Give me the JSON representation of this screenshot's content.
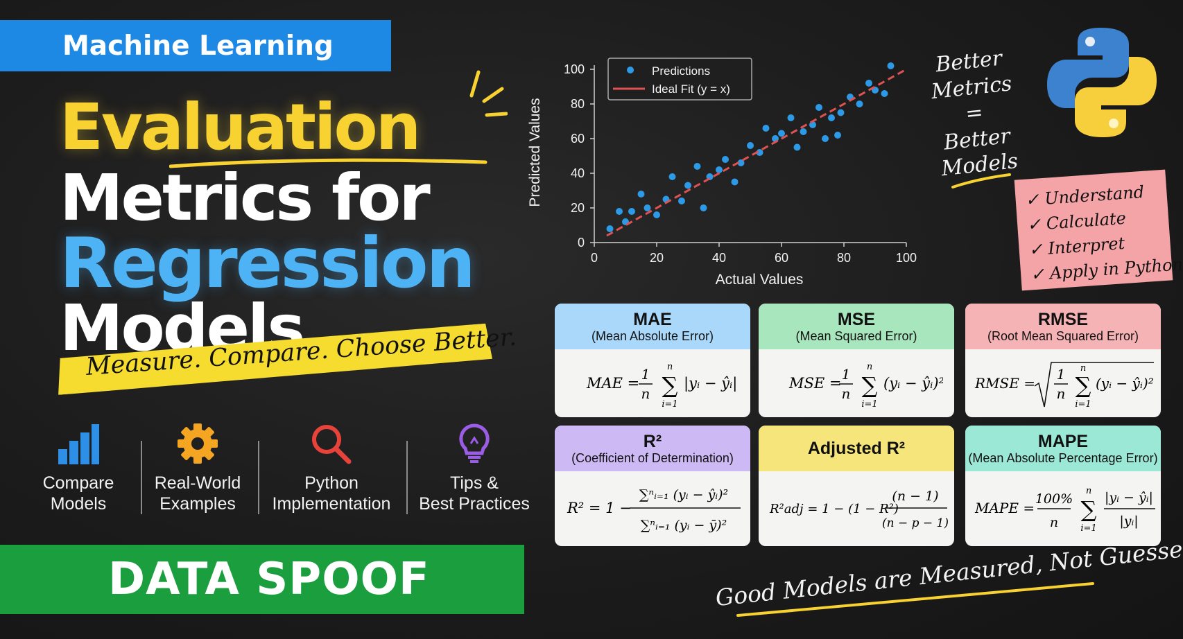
{
  "badge": "Machine Learning",
  "title": {
    "line1": "Evaluation",
    "line2": "Metrics for",
    "line3": "Regression",
    "line4": "Models"
  },
  "tagline": "Measure. Compare. Choose Better.",
  "features": [
    {
      "line1": "Compare",
      "line2": "Models",
      "icon": "bar-chart-icon",
      "color": "#2d8fe6"
    },
    {
      "line1": "Real-World",
      "line2": "Examples",
      "icon": "gear-icon",
      "color": "#f4a521"
    },
    {
      "line1": "Python",
      "line2": "Implementation",
      "icon": "magnifier-icon",
      "color": "#e8433b"
    },
    {
      "line1": "Tips &",
      "line2": "Best Practices",
      "icon": "lightbulb-icon",
      "color": "#9b5de5"
    }
  ],
  "brand": "DATA SPOOF",
  "chart_data": {
    "type": "scatter",
    "xlabel": "Actual Values",
    "ylabel": "Predicted Values",
    "xlim": [
      0,
      100
    ],
    "ylim": [
      0,
      100
    ],
    "xticks": [
      "0",
      "20",
      "40",
      "60",
      "80",
      "100"
    ],
    "yticks": [
      "0",
      "20",
      "40",
      "60",
      "80",
      "100"
    ],
    "legend": {
      "placement": "top-left",
      "entries": [
        "Predictions",
        "Ideal Fit (y = x)"
      ]
    },
    "series": [
      {
        "name": "Predictions",
        "points": [
          [
            5,
            8
          ],
          [
            8,
            18
          ],
          [
            10,
            12
          ],
          [
            12,
            18
          ],
          [
            15,
            28
          ],
          [
            17,
            20
          ],
          [
            20,
            16
          ],
          [
            23,
            25
          ],
          [
            25,
            38
          ],
          [
            28,
            24
          ],
          [
            30,
            33
          ],
          [
            33,
            44
          ],
          [
            35,
            20
          ],
          [
            37,
            38
          ],
          [
            40,
            42
          ],
          [
            42,
            48
          ],
          [
            45,
            35
          ],
          [
            47,
            46
          ],
          [
            50,
            56
          ],
          [
            53,
            52
          ],
          [
            55,
            66
          ],
          [
            58,
            60
          ],
          [
            60,
            63
          ],
          [
            63,
            72
          ],
          [
            65,
            55
          ],
          [
            67,
            64
          ],
          [
            70,
            68
          ],
          [
            72,
            78
          ],
          [
            74,
            60
          ],
          [
            76,
            72
          ],
          [
            79,
            75
          ],
          [
            82,
            84
          ],
          [
            85,
            80
          ],
          [
            88,
            92
          ],
          [
            90,
            88
          ],
          [
            93,
            86
          ],
          [
            95,
            102
          ],
          [
            78,
            62
          ]
        ]
      },
      {
        "name": "Ideal Fit (y = x)",
        "line": [
          [
            4,
            4
          ],
          [
            100,
            100
          ]
        ]
      }
    ]
  },
  "side_note": {
    "l1": "Better",
    "l2": "Metrics",
    "l3": "=",
    "l4": "Better",
    "l5": "Models"
  },
  "checklist": [
    "✓ Understand",
    "✓ Calculate",
    "✓ Interpret",
    "✓ Apply in Python"
  ],
  "cards": [
    {
      "name": "MAE",
      "sub": "(Mean Absolute Error)",
      "color": "#a9d8fb"
    },
    {
      "name": "MSE",
      "sub": "(Mean Squared Error)",
      "color": "#a8e6bd"
    },
    {
      "name": "RMSE",
      "sub": "(Root Mean Squared Error)",
      "color": "#f6b3b5"
    },
    {
      "name": "R²",
      "sub": "(Coefficient of Determination)",
      "color": "#cdb9f3"
    },
    {
      "name": "Adjusted R²",
      "sub": "",
      "color": "#f5e57a"
    },
    {
      "name": "MAPE",
      "sub": "(Mean Absolute Percentage Error)",
      "color": "#9ce8d6"
    }
  ],
  "formulas": {
    "mae": {
      "lhs": "MAE =",
      "frac_num": "1",
      "frac_den": "n",
      "sum_top": "n",
      "sum_bot": "i=1",
      "body": "|yᵢ − ŷᵢ|"
    },
    "mse": {
      "lhs": "MSE =",
      "frac_num": "1",
      "frac_den": "n",
      "sum_top": "n",
      "sum_bot": "i=1",
      "body": "(yᵢ − ŷᵢ)²"
    },
    "rmse": {
      "lhs": "RMSE =",
      "frac_num": "1",
      "frac_den": "n",
      "sum_top": "n",
      "sum_bot": "i=1",
      "body": "(yᵢ − ŷᵢ)²"
    },
    "r2": {
      "lhs": "R² = 1 −",
      "num": "∑ⁿᵢ₌₁ (yᵢ − ŷᵢ)²",
      "den": "∑ⁿᵢ₌₁ (yᵢ − ȳ)²"
    },
    "adj": {
      "lhs": "R²adj = 1 − (1 − R²)",
      "num": "(n − 1)",
      "den": "(n − p − 1)"
    },
    "mape": {
      "lhs": "MAPE =",
      "frac_num": "100%",
      "frac_den": "n",
      "sum_top": "n",
      "sum_bot": "i=1",
      "num": "|yᵢ − ŷᵢ|",
      "den": "|yᵢ|"
    }
  },
  "footer": "Good Models are Measured, Not Guessed!"
}
